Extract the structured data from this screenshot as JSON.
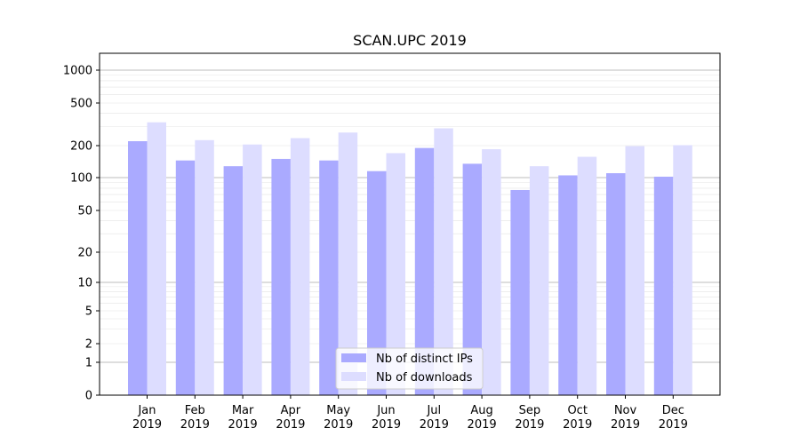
{
  "chart_data": {
    "type": "bar",
    "title": "SCAN.UPC 2019",
    "xlabel": "",
    "ylabel": "",
    "yscale": "symlog",
    "ylim": [
      0,
      1400
    ],
    "yticks": [
      0,
      1,
      2,
      5,
      10,
      20,
      50,
      100,
      200,
      500,
      1000
    ],
    "grid": true,
    "legend_position": "bottom-center",
    "categories": [
      {
        "month": "Jan",
        "year": "2019"
      },
      {
        "month": "Feb",
        "year": "2019"
      },
      {
        "month": "Mar",
        "year": "2019"
      },
      {
        "month": "Apr",
        "year": "2019"
      },
      {
        "month": "May",
        "year": "2019"
      },
      {
        "month": "Jun",
        "year": "2019"
      },
      {
        "month": "Jul",
        "year": "2019"
      },
      {
        "month": "Aug",
        "year": "2019"
      },
      {
        "month": "Sep",
        "year": "2019"
      },
      {
        "month": "Oct",
        "year": "2019"
      },
      {
        "month": "Nov",
        "year": "2019"
      },
      {
        "month": "Dec",
        "year": "2019"
      }
    ],
    "series": [
      {
        "name": "Nb of distinct IPs",
        "color": "#aaaaff",
        "values": [
          220,
          145,
          128,
          150,
          145,
          115,
          190,
          135,
          77,
          105,
          110,
          102
        ]
      },
      {
        "name": "Nb of downloads",
        "color": "#ddddff",
        "values": [
          330,
          225,
          205,
          235,
          265,
          170,
          290,
          185,
          128,
          157,
          198,
          202
        ]
      }
    ]
  }
}
